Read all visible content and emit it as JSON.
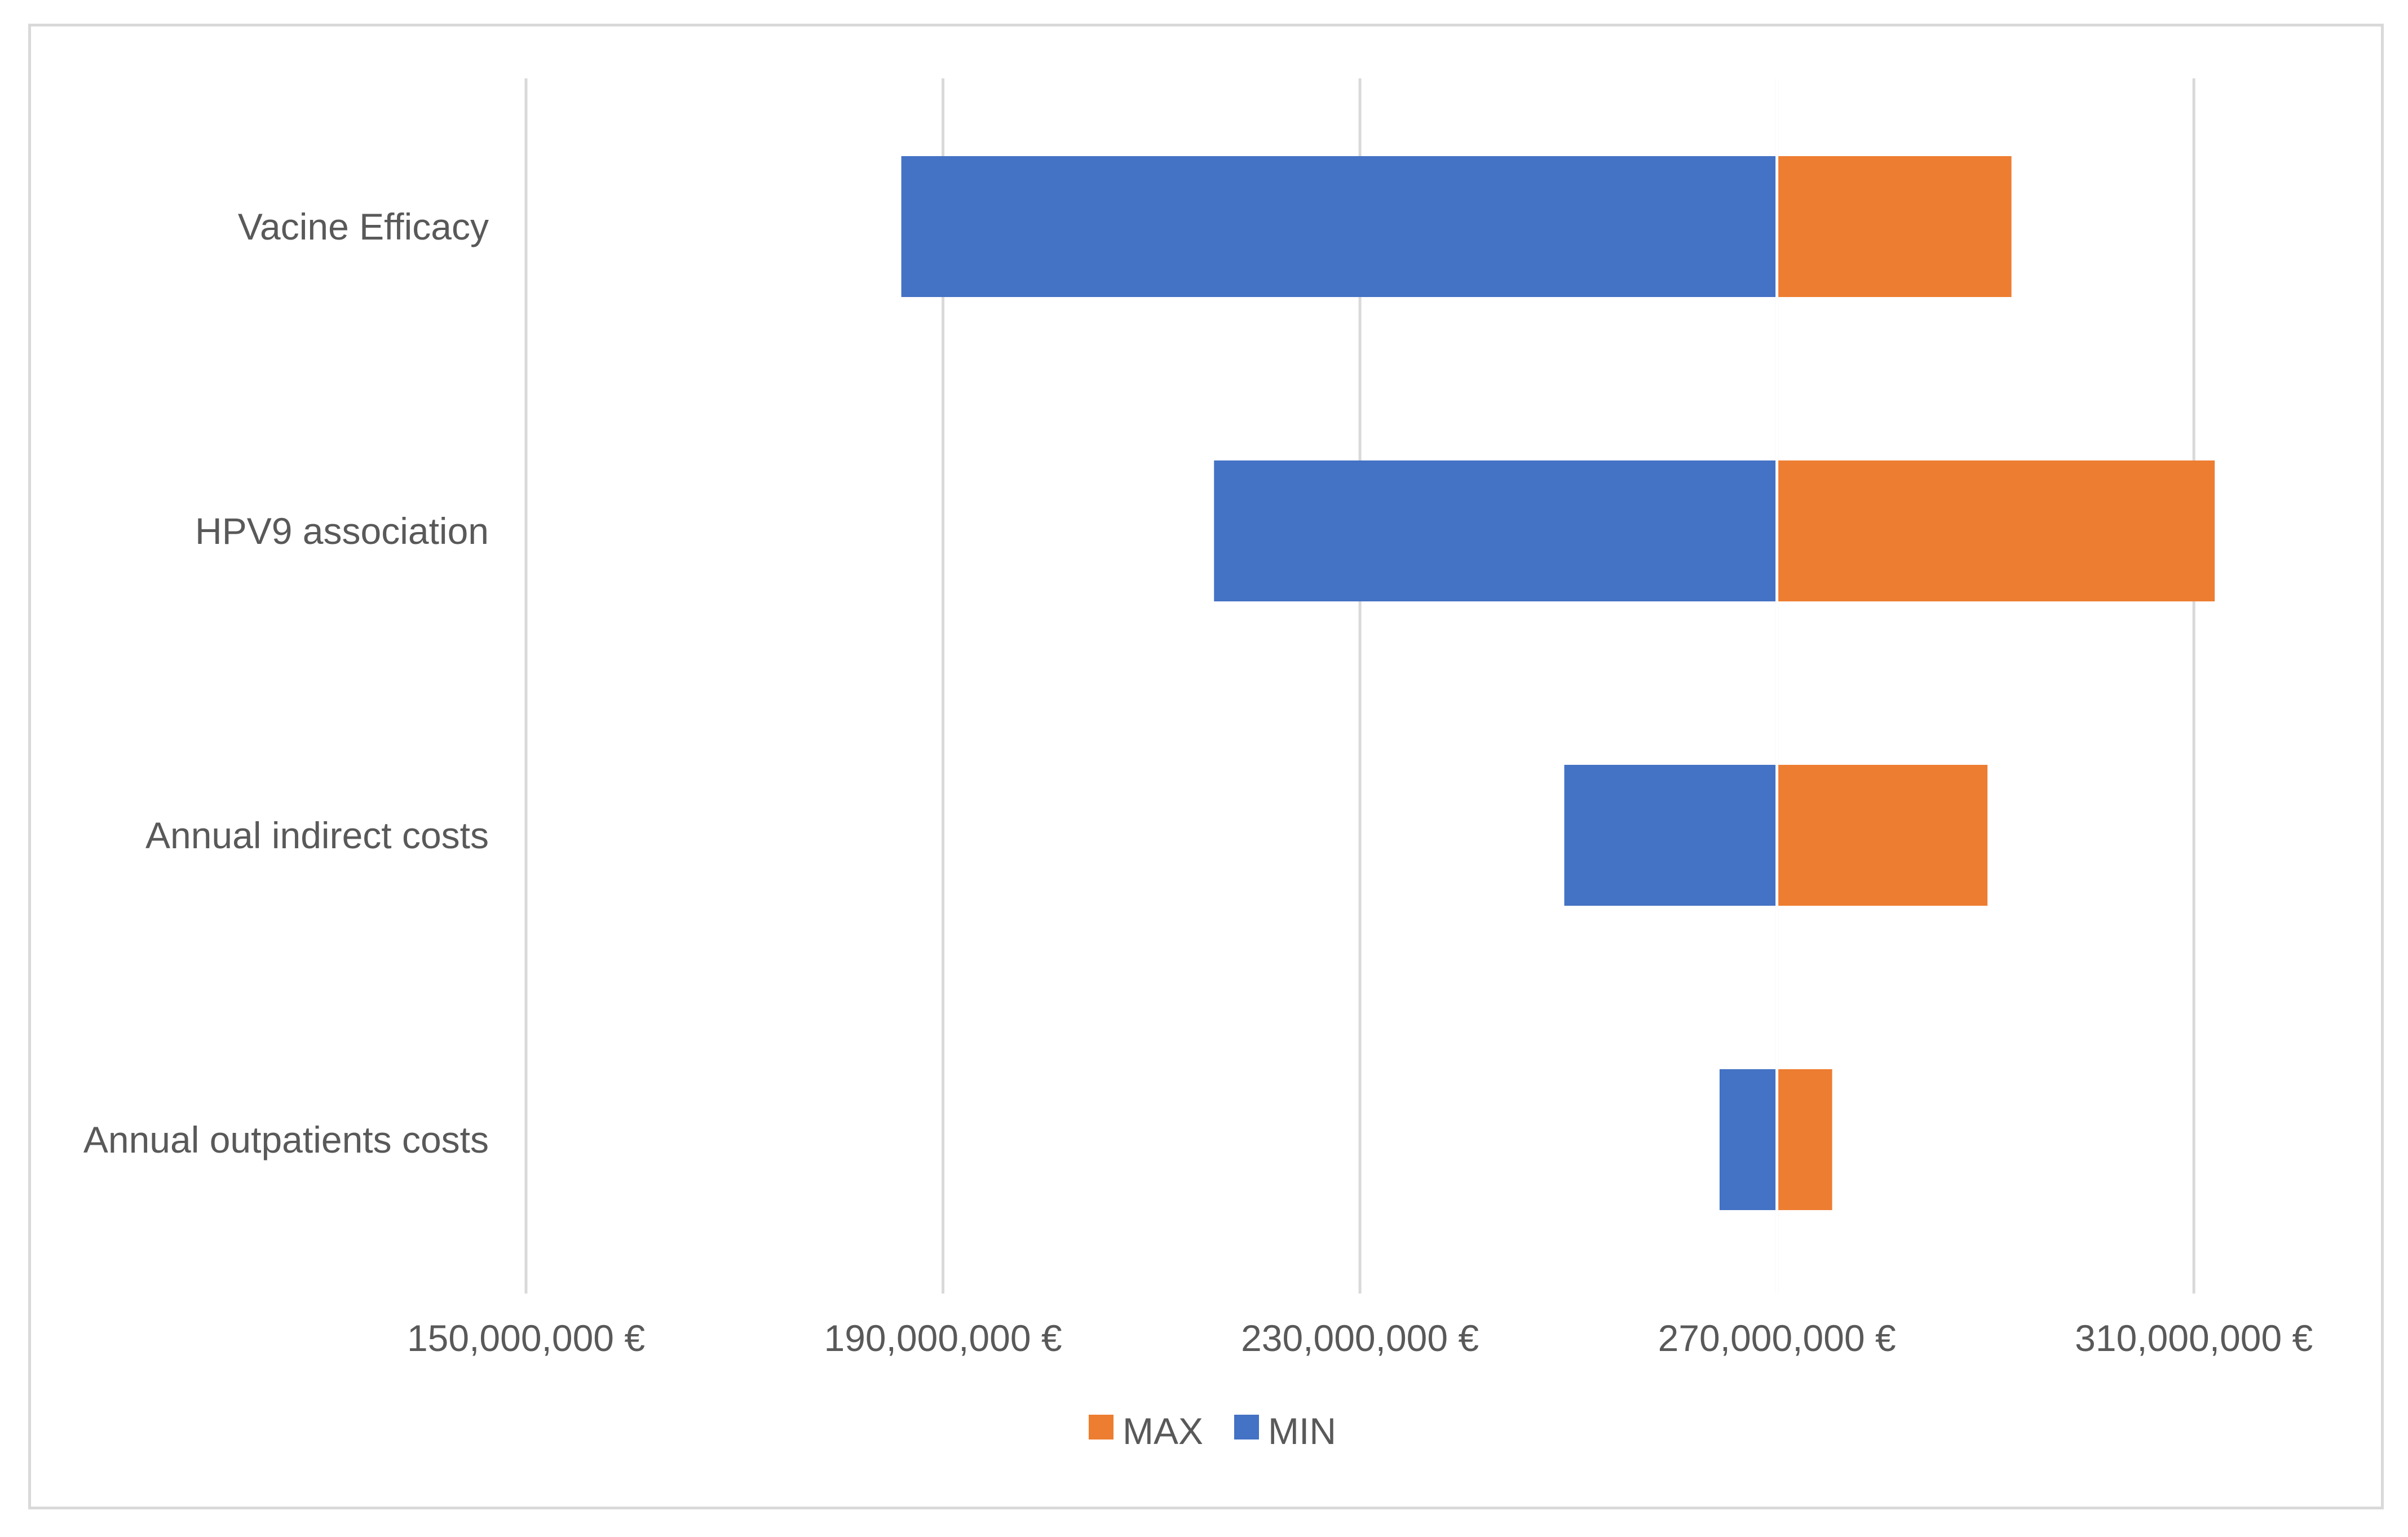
{
  "chart_data": {
    "type": "bar",
    "subtype": "tornado",
    "title": "",
    "xlabel": "",
    "ylabel": "",
    "base_value": 270000000,
    "xlim": [
      150000000,
      330000000
    ],
    "x_ticks": [
      150000000,
      190000000,
      230000000,
      270000000,
      310000000
    ],
    "x_tick_labels": [
      "150,000,000 €",
      "190,000,000 €",
      "230,000,000 €",
      "270,000,000 €",
      "310,000,000 €"
    ],
    "grid": true,
    "legend_position": "bottom",
    "categories": [
      "Vacine Efficacy",
      "HPV9 association",
      "Annual indirect costs",
      "Annual outpatients costs"
    ],
    "series": [
      {
        "name": "MAX",
        "color": "#ED7D31",
        "values": [
          292500000,
          312000000,
          290200000,
          275300000
        ]
      },
      {
        "name": "MIN",
        "color": "#4472C4",
        "values": [
          186000000,
          216000000,
          249600000,
          264500000
        ]
      }
    ],
    "legend": [
      "MAX",
      "MIN"
    ]
  }
}
